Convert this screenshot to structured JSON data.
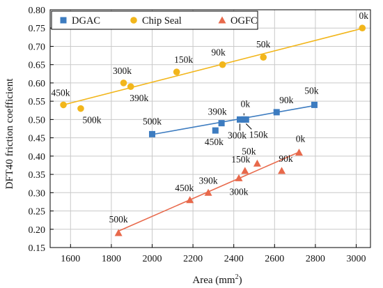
{
  "chart_data": {
    "type": "scatter",
    "xlabel": "Area (mm",
    "xlabel_sup": "2",
    "xlabel_close": ")",
    "ylabel": "DFT40 friction coefficient",
    "xlim": [
      1500,
      3070
    ],
    "ylim": [
      0.15,
      0.8
    ],
    "xticks": [
      1600,
      1800,
      2000,
      2200,
      2400,
      2600,
      2800,
      3000
    ],
    "xtick_labels": [
      "1600",
      "1800",
      "2000",
      "2200",
      "2400",
      "2600",
      "2800",
      "3000"
    ],
    "yticks": [
      0.15,
      0.2,
      0.25,
      0.3,
      0.35,
      0.4,
      0.45,
      0.5,
      0.55,
      0.6,
      0.65,
      0.7,
      0.75,
      0.8
    ],
    "ytick_labels": [
      "0.15",
      "0.20",
      "0.25",
      "0.30",
      "0.35",
      "0.40",
      "0.45",
      "0.50",
      "0.55",
      "0.60",
      "0.65",
      "0.70",
      "0.75",
      "0.80"
    ],
    "grid": true,
    "legend_position": "top-left",
    "series": [
      {
        "name": "DGAC",
        "color": "#3D7CC0",
        "marker": "square",
        "points": [
          {
            "x": 2000,
            "y": 0.46,
            "label": "500k"
          },
          {
            "x": 2310,
            "y": 0.47,
            "label": "450k"
          },
          {
            "x": 2340,
            "y": 0.49,
            "label": "390k"
          },
          {
            "x": 2430,
            "y": 0.5,
            "label": "300k"
          },
          {
            "x": 2450,
            "y": 0.5,
            "label": "0k"
          },
          {
            "x": 2460,
            "y": 0.5,
            "label": "150k"
          },
          {
            "x": 2610,
            "y": 0.52,
            "label": "90k"
          },
          {
            "x": 2795,
            "y": 0.54,
            "label": "50k"
          }
        ],
        "trend": [
          [
            2000,
            0.459
          ],
          [
            2795,
            0.538
          ]
        ]
      },
      {
        "name": "Chip Seal",
        "color": "#F2B61B",
        "marker": "circle",
        "points": [
          {
            "x": 1565,
            "y": 0.54,
            "label": "450k"
          },
          {
            "x": 1650,
            "y": 0.53,
            "label": "500k"
          },
          {
            "x": 1860,
            "y": 0.6,
            "label": "300k"
          },
          {
            "x": 1895,
            "y": 0.59,
            "label": "390k"
          },
          {
            "x": 2120,
            "y": 0.63,
            "label": "150k"
          },
          {
            "x": 2345,
            "y": 0.65,
            "label": "90k"
          },
          {
            "x": 2545,
            "y": 0.67,
            "label": "50k"
          },
          {
            "x": 3030,
            "y": 0.75,
            "label": "0k"
          }
        ],
        "trend": [
          [
            1565,
            0.54
          ],
          [
            3030,
            0.749
          ]
        ]
      },
      {
        "name": "OGFC",
        "color": "#E8694B",
        "marker": "triangle",
        "points": [
          {
            "x": 1835,
            "y": 0.19,
            "label": "500k"
          },
          {
            "x": 2185,
            "y": 0.28,
            "label": "450k"
          },
          {
            "x": 2275,
            "y": 0.3,
            "label": "390k"
          },
          {
            "x": 2425,
            "y": 0.34,
            "label": "300k"
          },
          {
            "x": 2455,
            "y": 0.36,
            "label": "150k"
          },
          {
            "x": 2515,
            "y": 0.38,
            "label": "50k"
          },
          {
            "x": 2635,
            "y": 0.36,
            "label": "90k"
          },
          {
            "x": 2720,
            "y": 0.41,
            "label": "0k"
          }
        ],
        "trend": [
          [
            1835,
            0.195
          ],
          [
            2720,
            0.411
          ]
        ]
      }
    ]
  }
}
